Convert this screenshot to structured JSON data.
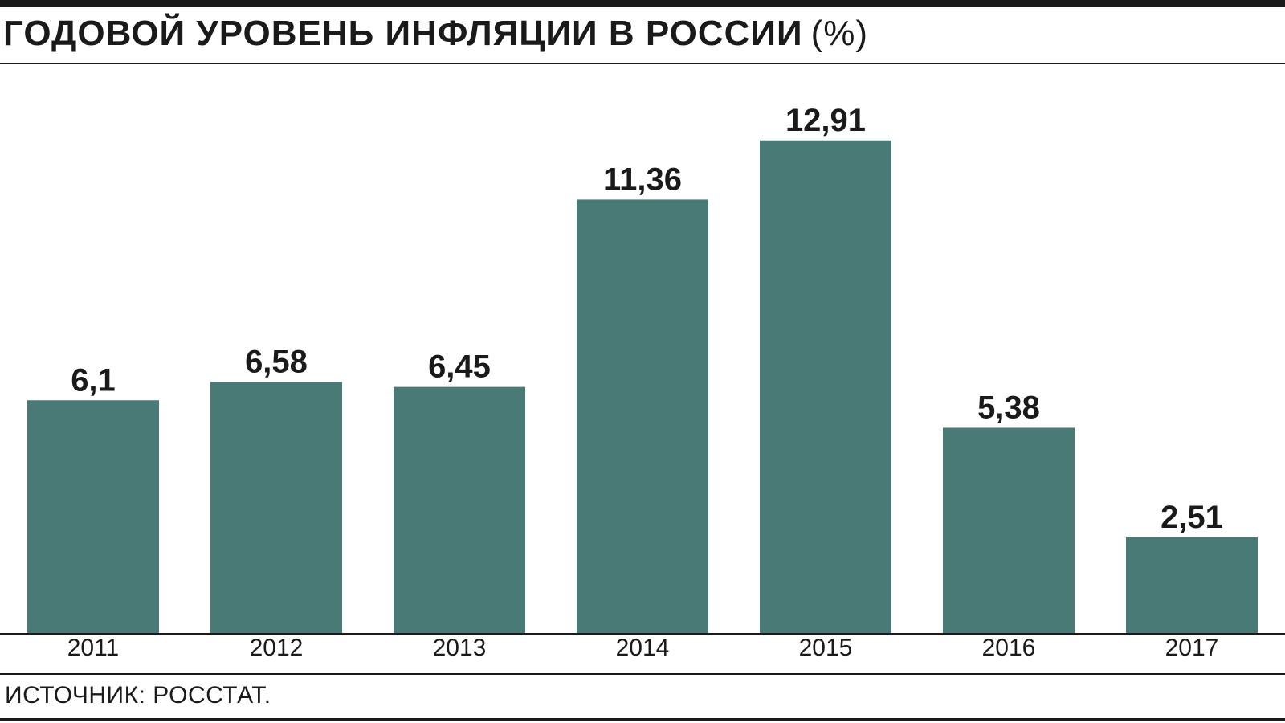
{
  "header": {
    "title": "ГОДОВОЙ УРОВЕНЬ ИНФЛЯЦИИ В РОССИИ",
    "unit": "(%)"
  },
  "chart_data": {
    "type": "bar",
    "categories": [
      "2011",
      "2012",
      "2013",
      "2014",
      "2015",
      "2016",
      "2017"
    ],
    "values": [
      6.1,
      6.58,
      6.45,
      11.36,
      12.91,
      5.38,
      2.51
    ],
    "value_labels": [
      "6,1",
      "6,58",
      "6,45",
      "11,36",
      "12,91",
      "5,38",
      "2,51"
    ],
    "ylim": [
      0,
      15
    ],
    "grid": false,
    "bar_color": "#4a7a76"
  },
  "footer": {
    "source": "ИСТОЧНИК: РОССТАТ."
  }
}
